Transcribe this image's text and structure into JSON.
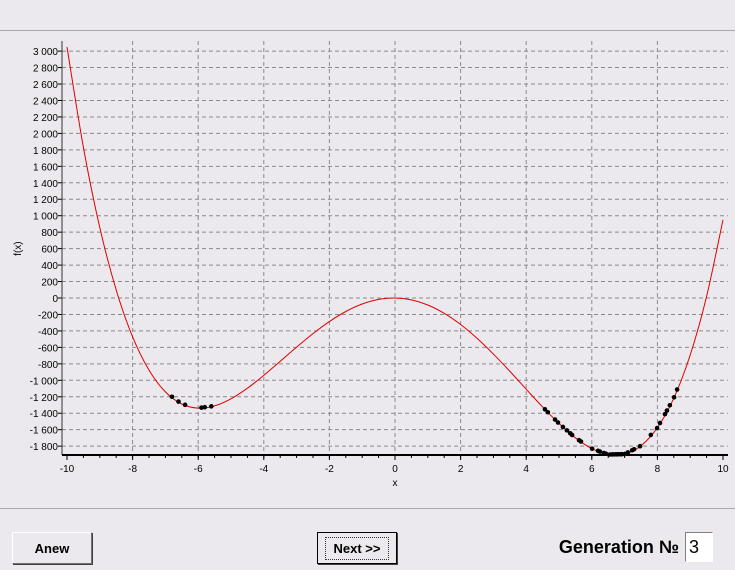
{
  "chart_data": {
    "type": "line",
    "xlabel": "x",
    "ylabel": "f(x)",
    "xlim": [
      -10,
      10
    ],
    "ylim": [
      -1900,
      3100
    ],
    "xticks": [
      -10,
      -8,
      -6,
      -4,
      -2,
      0,
      2,
      4,
      6,
      8,
      10
    ],
    "yticks": [
      3000,
      2800,
      2600,
      2400,
      2200,
      2000,
      1800,
      1600,
      1400,
      1200,
      1000,
      800,
      600,
      400,
      200,
      0,
      -200,
      -400,
      -600,
      -800,
      -1000,
      -1200,
      -1400,
      -1600,
      -1800
    ],
    "ytick_labels": [
      "3 000",
      "2 800",
      "2 600",
      "2 400",
      "2 200",
      "2 000",
      "1 800",
      "1 600",
      "1 400",
      "1 200",
      "1 000",
      "800",
      "600",
      "400",
      "200",
      "0",
      "-200",
      "-400",
      "-600",
      "-800",
      "-1 000",
      "-1 200",
      "-1 400",
      "-1 600",
      "-1 800"
    ],
    "grid": true,
    "curve_color": "#e00000",
    "point_color": "#000000",
    "curve": {
      "x": [
        -10,
        -9.5,
        -9,
        -8.5,
        -8,
        -7.5,
        -7,
        -6.5,
        -6,
        -5.5,
        -5,
        -4.5,
        -4,
        -3.5,
        -3,
        -2.5,
        -2,
        -1.5,
        -1,
        -0.5,
        0,
        0.5,
        1,
        1.5,
        2,
        2.5,
        3,
        3.5,
        4,
        4.5,
        5,
        5.5,
        6,
        6.5,
        7,
        7.5,
        8,
        8.5,
        9,
        9.5,
        10
      ],
      "y": [
        3050,
        1830,
        855,
        97,
        -472,
        -877,
        -1141,
        -1288,
        -1338,
        -1311,
        -1225,
        -1096,
        -940,
        -770,
        -597,
        -433,
        -286,
        -164,
        -73,
        -17,
        0,
        -23,
        -85,
        -186,
        -322,
        -489,
        -681,
        -890,
        -1108,
        -1324,
        -1525,
        -1699,
        -1830,
        -1902,
        -1897,
        -1795,
        -1576,
        -1217,
        -693,
        20,
        950
      ]
    },
    "population_x": [
      -6.8,
      -6.6,
      -6.4,
      -5.9,
      -5.8,
      -5.6,
      4.57,
      4.66,
      4.88,
      4.97,
      5.12,
      5.24,
      5.34,
      5.4,
      5.61,
      5.67,
      6.01,
      6.19,
      6.25,
      6.37,
      6.43,
      6.55,
      6.62,
      6.68,
      6.74,
      6.8,
      6.86,
      6.92,
      7.01,
      7.1,
      7.23,
      7.29,
      7.47,
      7.8,
      7.99,
      8.08,
      8.23,
      8.29,
      8.38,
      8.51,
      8.6
    ]
  },
  "controls": {
    "anew_label": "Anew",
    "next_label": "Next >>",
    "generation_label": "Generation №",
    "generation_value": "3"
  }
}
